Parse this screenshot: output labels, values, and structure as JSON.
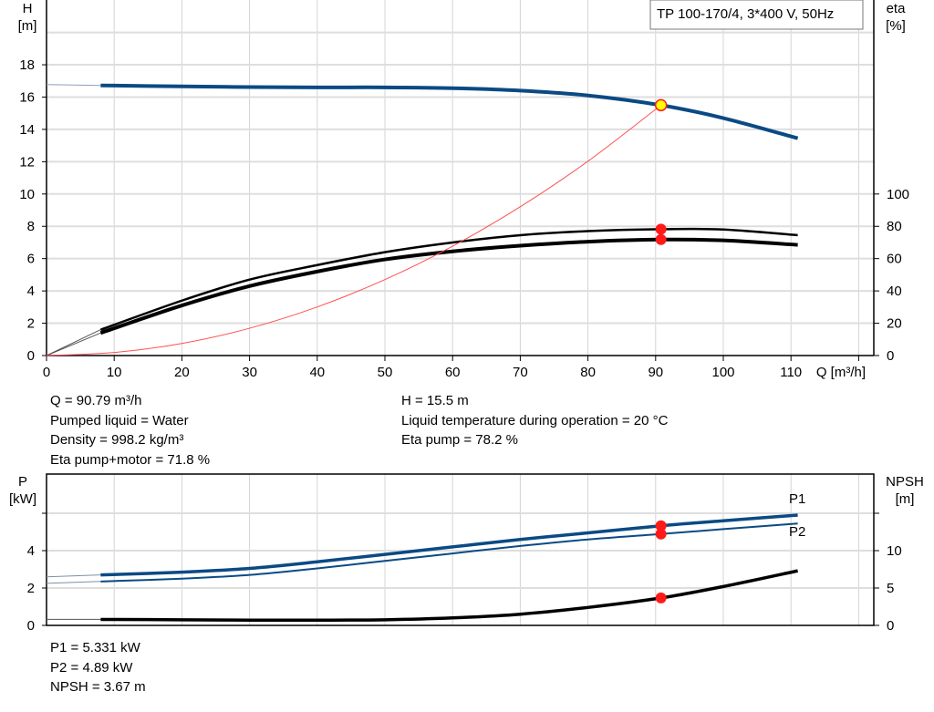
{
  "chart_data": [
    {
      "type": "line",
      "title": "TP 100-170/4, 3*400 V, 50Hz",
      "xlabel": "Q [m³/h]",
      "ylabel": "H\n[m]",
      "y2label": "eta\n[%]",
      "xlim": [
        0,
        120
      ],
      "ylim": [
        0,
        22
      ],
      "y2lim": [
        0,
        220
      ],
      "xticks": [
        "0",
        "10",
        "20",
        "30",
        "40",
        "50",
        "60",
        "70",
        "80",
        "90",
        "100",
        "110"
      ],
      "yticks": [
        "0",
        "2",
        "4",
        "6",
        "8",
        "10",
        "12",
        "14",
        "16",
        "18"
      ],
      "y2ticks": [
        "0",
        "20",
        "40",
        "60",
        "80",
        "100"
      ],
      "grid": true,
      "colors": {
        "head": "#0a4a84",
        "eta": "#000000",
        "system": "#ff5050",
        "point": "#ff1a1a",
        "duty_fill": "#ffff00"
      },
      "series": [
        {
          "key": "head",
          "axis": "H",
          "x": [
            8,
            20,
            30,
            40,
            50,
            60,
            70,
            80,
            90.79,
            100,
            111
          ],
          "values": [
            16.72,
            16.66,
            16.62,
            16.6,
            16.6,
            16.55,
            16.4,
            16.1,
            15.5,
            14.7,
            13.45
          ],
          "extension": {
            "x": [
              0,
              8
            ],
            "values": [
              16.78,
              16.72
            ]
          }
        },
        {
          "key": "eta_pump",
          "axis": "eta",
          "x": [
            8,
            20,
            30,
            40,
            50,
            60,
            70,
            80,
            90.79,
            100,
            111
          ],
          "values": [
            16,
            34,
            47,
            56,
            64,
            70,
            74.5,
            77,
            78.2,
            78,
            74.5
          ],
          "extension": {
            "x": [
              0,
              8
            ],
            "values": [
              0,
              16
            ]
          }
        },
        {
          "key": "eta_pump_motor",
          "axis": "eta",
          "x": [
            8,
            20,
            30,
            40,
            50,
            60,
            70,
            80,
            90.79,
            100,
            111
          ],
          "values": [
            14,
            31,
            43,
            52,
            59.5,
            64.5,
            68,
            70.5,
            71.8,
            71.3,
            68.5
          ],
          "extension": {
            "x": [
              0,
              8
            ],
            "values": [
              0,
              14
            ]
          }
        },
        {
          "key": "system_curve",
          "axis": "H",
          "x": [
            0,
            10,
            20,
            30,
            40,
            50,
            60,
            70,
            80,
            90.79
          ],
          "values": [
            0,
            0.19,
            0.75,
            1.69,
            3.01,
            4.7,
            6.77,
            9.21,
            12.03,
            15.5
          ]
        }
      ],
      "duty_point": {
        "Q": 90.79,
        "H": 15.5,
        "eta_pump": 78.2,
        "eta_pump_motor": 71.8
      }
    },
    {
      "type": "line",
      "xlim": [
        0,
        120
      ],
      "ylabel": "P\n[kW]",
      "y2label": "NPSH\n[m]",
      "ylim": [
        0,
        8
      ],
      "y2lim": [
        0,
        20
      ],
      "yticks": [
        "0",
        "2",
        "4"
      ],
      "y2ticks": [
        "0",
        "5",
        "10"
      ],
      "grid": true,
      "series": [
        {
          "key": "P1",
          "name": "P1",
          "axis": "P",
          "x": [
            8,
            20,
            30,
            40,
            50,
            60,
            70,
            80,
            90.79,
            100,
            111
          ],
          "values": [
            2.7,
            2.85,
            3.05,
            3.4,
            3.8,
            4.2,
            4.6,
            4.95,
            5.331,
            5.6,
            5.9
          ],
          "extension": {
            "x": [
              0,
              8
            ],
            "values": [
              2.6,
              2.7
            ]
          }
        },
        {
          "key": "P2",
          "name": "P2",
          "axis": "P",
          "x": [
            8,
            20,
            30,
            40,
            50,
            60,
            70,
            80,
            90.79,
            100,
            111
          ],
          "values": [
            2.35,
            2.5,
            2.7,
            3.05,
            3.45,
            3.85,
            4.25,
            4.6,
            4.89,
            5.15,
            5.45
          ],
          "extension": {
            "x": [
              0,
              8
            ],
            "values": [
              2.25,
              2.35
            ]
          }
        },
        {
          "key": "NPSH",
          "axis": "NPSH",
          "x": [
            8,
            20,
            30,
            40,
            50,
            60,
            70,
            80,
            90.79,
            100,
            111
          ],
          "values": [
            0.8,
            0.75,
            0.7,
            0.7,
            0.75,
            1.0,
            1.5,
            2.4,
            3.67,
            5.2,
            7.3
          ],
          "extension": {
            "x": [
              0,
              8
            ],
            "values": [
              0.8,
              0.8
            ]
          }
        }
      ],
      "duty_point": {
        "Q": 90.79,
        "P1": 5.331,
        "P2": 4.89,
        "NPSH": 3.67
      }
    }
  ],
  "info": {
    "q": "Q = 90.79 m³/h",
    "liquid": "Pumped liquid = Water",
    "density": "Density = 998.2 kg/m³",
    "eta_pm": "Eta pump+motor = 71.8 %",
    "h": "H = 15.5 m",
    "temp": "Liquid temperature during operation = 20 °C",
    "eta_p": "Eta pump = 78.2 %",
    "p1": "P1 = 5.331 kW",
    "p2": "P2 = 4.89 kW",
    "npsh": "NPSH = 3.67 m"
  }
}
